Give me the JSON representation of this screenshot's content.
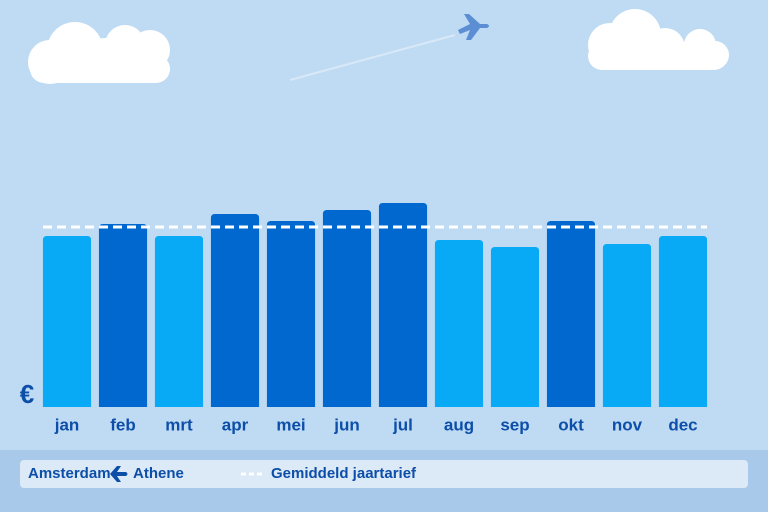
{
  "chart_data": {
    "type": "bar",
    "categories": [
      "jan",
      "feb",
      "mrt",
      "apr",
      "mei",
      "jun",
      "jul",
      "aug",
      "sep",
      "okt",
      "nov",
      "dec"
    ],
    "values": [
      171,
      183,
      171,
      193,
      186,
      197,
      204,
      167,
      160,
      186,
      163,
      171
    ],
    "colors": [
      "#08aaf6",
      "#0068cf",
      "#08aaf6",
      "#0068cf",
      "#0068cf",
      "#0068cf",
      "#0068cf",
      "#08aaf6",
      "#08aaf6",
      "#0068cf",
      "#08aaf6",
      "#08aaf6"
    ],
    "average": 180,
    "average_label": "Gemiddeld jaartarief",
    "currency": "€",
    "route": {
      "from": "Amsterdam",
      "to": "Athene"
    },
    "ylim": [
      0,
      240
    ]
  }
}
